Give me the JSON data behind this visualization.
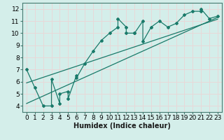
{
  "title": "",
  "xlabel": "Humidex (Indice chaleur)",
  "ylabel": "",
  "bg_color": "#d4eeea",
  "grid_color": "#e8d8d8",
  "line_color": "#1a7a6a",
  "xlim": [
    -0.5,
    23.5
  ],
  "ylim": [
    3.5,
    12.5
  ],
  "xticks": [
    0,
    1,
    2,
    3,
    4,
    5,
    6,
    7,
    8,
    9,
    10,
    11,
    12,
    13,
    14,
    15,
    16,
    17,
    18,
    19,
    20,
    21,
    22,
    23
  ],
  "yticks": [
    4,
    5,
    6,
    7,
    8,
    9,
    10,
    11,
    12
  ],
  "data_x": [
    0,
    1,
    2,
    3,
    3,
    4,
    4,
    5,
    5,
    6,
    6,
    7,
    8,
    9,
    10,
    11,
    11,
    12,
    12,
    13,
    13,
    14,
    14,
    15,
    16,
    17,
    18,
    19,
    20,
    21,
    21,
    22,
    23
  ],
  "data_y": [
    7.0,
    5.5,
    4.0,
    4.0,
    6.2,
    4.2,
    5.0,
    5.2,
    4.6,
    6.5,
    6.3,
    7.5,
    8.5,
    9.4,
    10.0,
    10.5,
    11.2,
    10.5,
    10.0,
    10.0,
    10.0,
    11.0,
    9.3,
    10.5,
    11.0,
    10.5,
    10.8,
    11.5,
    11.8,
    11.8,
    12.0,
    11.2,
    11.4
  ],
  "reg_line1_x": [
    0,
    23
  ],
  "reg_line1_y": [
    4.2,
    11.3
  ],
  "reg_line2_x": [
    0,
    23
  ],
  "reg_line2_y": [
    5.9,
    11.15
  ],
  "xlabel_fontsize": 7,
  "tick_fontsize": 6.5
}
